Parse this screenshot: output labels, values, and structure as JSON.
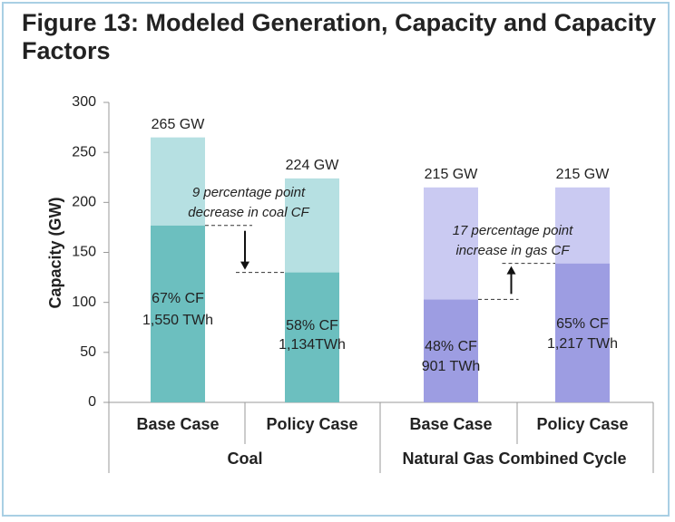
{
  "chart_data": {
    "type": "stacked-bar",
    "title": "Figure 13: Modeled Generation, Capacity and Capacity Factors",
    "y_label": "Capacity (GW)",
    "categories": [
      "Base Case",
      "Policy Case",
      "Base Case",
      "Policy Case"
    ],
    "group_labels": [
      "Coal",
      "Natural Gas Combined Cycle"
    ],
    "series": [
      {
        "colors": [
          "#6cbfbf",
          "#6cbfbf",
          "#9d9de2",
          "#9d9de2"
        ],
        "values": [
          177,
          130,
          103,
          139
        ]
      },
      {
        "colors": [
          "#b6e0e2",
          "#b6e0e2",
          "#cacaf2",
          "#cacaf2"
        ],
        "values": [
          88,
          94,
          112,
          76
        ]
      }
    ],
    "totals": [
      265,
      224,
      215,
      215
    ],
    "total_labels": [
      "265 GW",
      "224 GW",
      "215 GW",
      "215 GW"
    ],
    "cf_labels": [
      "67% CF",
      "58% CF",
      "48% CF",
      "65% CF"
    ],
    "generation_labels": [
      "1,550 TWh",
      "1,134TWh",
      "901 TWh",
      "1,217 TWh"
    ],
    "annotations": [
      [
        "9 percentage point",
        "decrease in coal CF"
      ],
      [
        "17 percentage point",
        "increase in gas CF"
      ]
    ],
    "ylim": [
      0,
      300
    ],
    "yticks": [
      0,
      50,
      100,
      150,
      200,
      250,
      300
    ]
  }
}
